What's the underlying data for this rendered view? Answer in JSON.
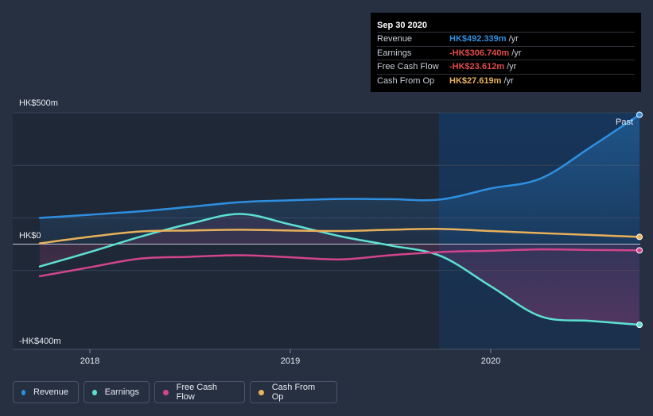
{
  "chart_data": {
    "type": "line",
    "y_label_top": "HK$500m",
    "y_label_zero": "HK$0",
    "y_label_bottom": "-HK$400m",
    "ylim": [
      -400,
      500
    ],
    "x_ticks": [
      "2018",
      "2019",
      "2020"
    ],
    "past_label": "Past",
    "series": [
      {
        "name": "Revenue",
        "color": "#2e8fe0",
        "x": [
          2017.75,
          2018.0,
          2018.25,
          2018.5,
          2018.75,
          2019.0,
          2019.25,
          2019.5,
          2019.75,
          2020.0,
          2020.25,
          2020.5,
          2020.75
        ],
        "values": [
          100,
          112,
          125,
          142,
          160,
          167,
          172,
          171,
          170,
          212,
          250,
          370,
          492.339
        ]
      },
      {
        "name": "Earnings",
        "color": "#5ce0d2",
        "x": [
          2017.75,
          2018.0,
          2018.25,
          2018.5,
          2018.75,
          2019.0,
          2019.25,
          2019.5,
          2019.75,
          2020.0,
          2020.25,
          2020.5,
          2020.75
        ],
        "values": [
          -85,
          -30,
          28,
          78,
          115,
          75,
          30,
          -5,
          -45,
          -160,
          -275,
          -292,
          -306.74
        ]
      },
      {
        "name": "Free Cash Flow",
        "color": "#d2458c",
        "x": [
          2017.75,
          2018.0,
          2018.25,
          2018.5,
          2018.75,
          2019.0,
          2019.25,
          2019.5,
          2019.75,
          2020.0,
          2020.25,
          2020.5,
          2020.75
        ],
        "values": [
          -122,
          -88,
          -55,
          -48,
          -42,
          -50,
          -58,
          -42,
          -30,
          -25,
          -20,
          -22,
          -23.612
        ]
      },
      {
        "name": "Cash From Op",
        "color": "#e8b15a",
        "x": [
          2017.75,
          2018.0,
          2018.25,
          2018.5,
          2018.75,
          2019.0,
          2019.25,
          2019.5,
          2019.75,
          2020.0,
          2020.25,
          2020.5,
          2020.75
        ],
        "values": [
          3,
          28,
          48,
          52,
          55,
          52,
          50,
          55,
          58,
          50,
          42,
          35,
          27.619
        ]
      }
    ]
  },
  "tooltip": {
    "date": "Sep 30 2020",
    "rows": [
      {
        "label": "Revenue",
        "value": "HK$492.339m",
        "unit": "/yr",
        "color": "#2e8fe0"
      },
      {
        "label": "Earnings",
        "value": "-HK$306.740m",
        "unit": "/yr",
        "color": "#e04a4a"
      },
      {
        "label": "Free Cash Flow",
        "value": "-HK$23.612m",
        "unit": "/yr",
        "color": "#e04a4a"
      },
      {
        "label": "Cash From Op",
        "value": "HK$27.619m",
        "unit": "/yr",
        "color": "#e8b15a"
      }
    ]
  },
  "legend": [
    {
      "label": "Revenue",
      "color": "#2e8fe0"
    },
    {
      "label": "Earnings",
      "color": "#5ce0d2"
    },
    {
      "label": "Free Cash Flow",
      "color": "#d2458c"
    },
    {
      "label": "Cash From Op",
      "color": "#e8b15a"
    }
  ]
}
